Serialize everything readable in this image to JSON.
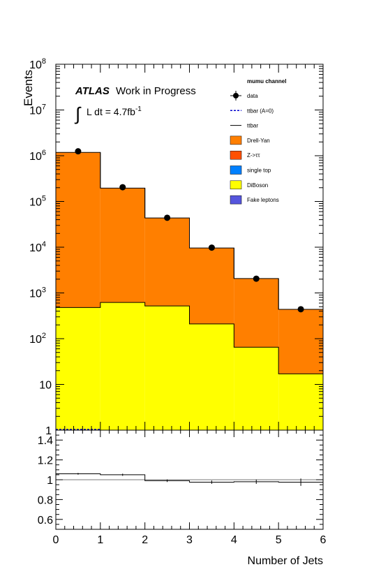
{
  "chart_data": [
    {
      "type": "bar",
      "stacked": true,
      "log_y": true,
      "ylabel": "Events",
      "x_edges": [
        0,
        1,
        2,
        3,
        4,
        5,
        6
      ],
      "ylim": [
        1,
        100000000
      ],
      "y_ticks": [
        {
          "value": 1,
          "label": "1"
        },
        {
          "value": 10,
          "label": "10"
        },
        {
          "value": 100,
          "label": "10",
          "exp": "2"
        },
        {
          "value": 1000,
          "label": "10",
          "exp": "3"
        },
        {
          "value": 10000,
          "label": "10",
          "exp": "4"
        },
        {
          "value": 100000,
          "label": "10",
          "exp": "5"
        },
        {
          "value": 1000000,
          "label": "10",
          "exp": "6"
        },
        {
          "value": 10000000,
          "label": "10",
          "exp": "7"
        },
        {
          "value": 100000000,
          "label": "10",
          "exp": "8"
        }
      ],
      "series": [
        {
          "name": "DiBoson",
          "color": "#ffff00",
          "values": [
            480,
            620,
            520,
            210,
            65,
            17
          ]
        },
        {
          "name": "Drell-Yan",
          "color": "#ff7f00",
          "values": [
            1180000,
            195000,
            43000,
            9400,
            2000,
            420
          ]
        }
      ],
      "data_points": {
        "name": "data",
        "x": [
          0.5,
          1.5,
          2.5,
          3.5,
          4.5,
          5.5
        ],
        "y": [
          1250000,
          205000,
          44000,
          9800,
          2050,
          440
        ]
      },
      "ttbar_A0_dashed": {
        "x": [
          0,
          1
        ],
        "y": [
          1,
          1
        ]
      },
      "annotations": {
        "atlas": "ATLAS",
        "work": "Work in Progress",
        "lumi_prefix": "L dt = 4.7fb",
        "lumi_exp": "-1"
      },
      "legend": {
        "placement": "top-right",
        "title": "mumu channel",
        "entries": [
          {
            "label": "data",
            "kind": "marker",
            "color": "#000000"
          },
          {
            "label": "ttbar (A=0)",
            "kind": "dashed",
            "color": "#0000cc"
          },
          {
            "label": "ttbar",
            "kind": "line",
            "color": "#000000"
          },
          {
            "label": "Drell-Yan",
            "kind": "box",
            "color": "#ff7f00"
          },
          {
            "label": "Z->ττ",
            "kind": "box",
            "color": "#ff5000"
          },
          {
            "label": "single top",
            "kind": "box",
            "color": "#0080ff"
          },
          {
            "label": "DiBoson",
            "kind": "box",
            "color": "#ffff00"
          },
          {
            "label": "Fake leptons",
            "kind": "box",
            "color": "#5555dd"
          }
        ]
      }
    },
    {
      "type": "line",
      "ylim": [
        0.5,
        1.5
      ],
      "y_ticks": [
        "0.6",
        "0.8",
        "1",
        "1.2",
        "1.4"
      ],
      "x_ticks": [
        "0",
        "1",
        "2",
        "3",
        "4",
        "5",
        "6"
      ],
      "xlabel": "Number of Jets",
      "x_edges": [
        0,
        1,
        2,
        3,
        4,
        5,
        6
      ],
      "ratio_values": [
        1.06,
        1.05,
        0.99,
        0.975,
        0.98,
        0.975
      ],
      "ratio_errors": [
        0.002,
        0.004,
        0.006,
        0.01,
        0.015,
        0.03
      ],
      "reference_line": 1
    }
  ]
}
